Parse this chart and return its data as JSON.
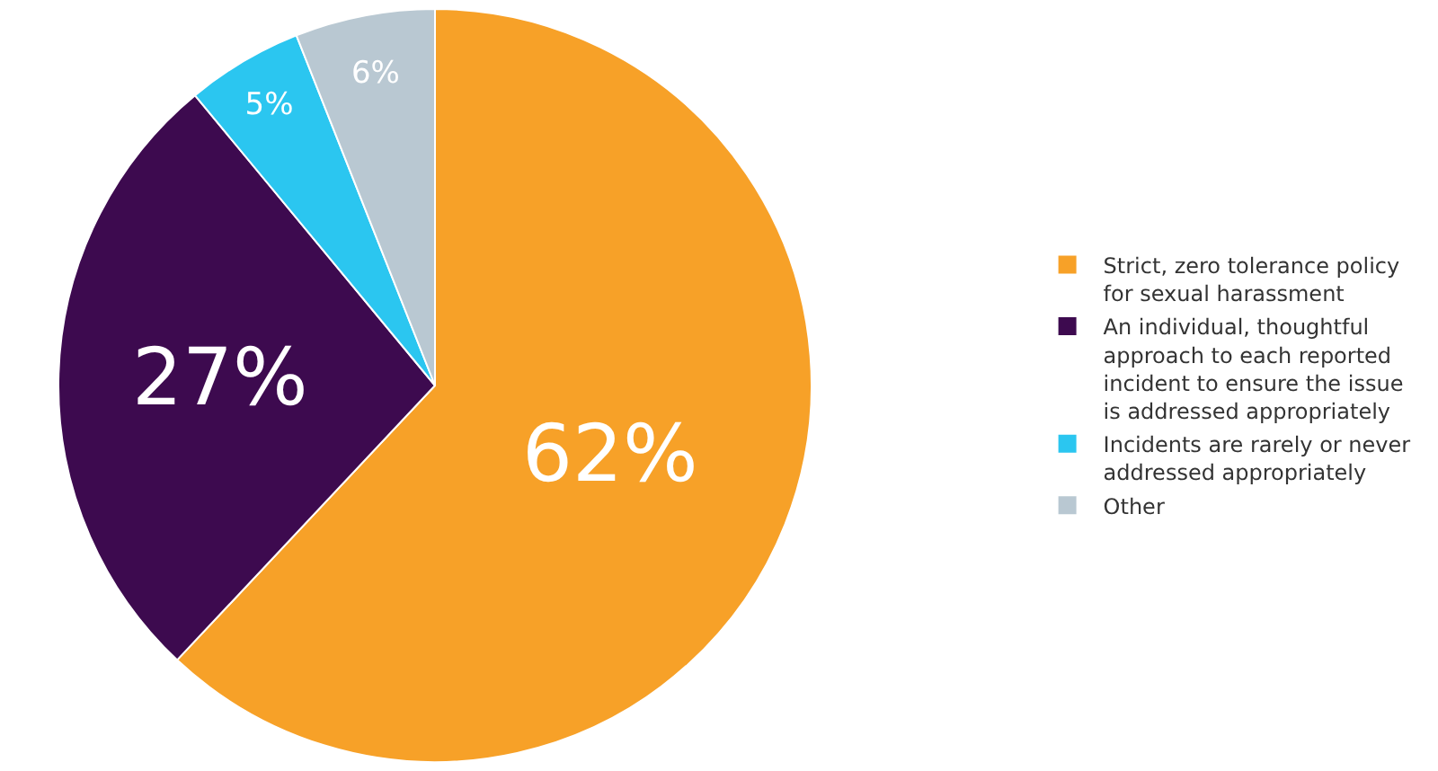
{
  "chart_data": {
    "type": "pie",
    "categories": [
      "Strict, zero tolerance policy for sexual harassment",
      "An individual, thoughtful approach to each reported incident to ensure the issue is addressed appropriately",
      "Incidents are rarely or never addressed appropriately",
      "Other"
    ],
    "values": [
      62,
      27,
      5,
      6
    ],
    "colors": [
      "#f7a128",
      "#3d0a4f",
      "#2bc6f0",
      "#b9c8d2"
    ],
    "value_labels": [
      "62%",
      "27%",
      "5%",
      "6%"
    ],
    "legend": "right"
  }
}
